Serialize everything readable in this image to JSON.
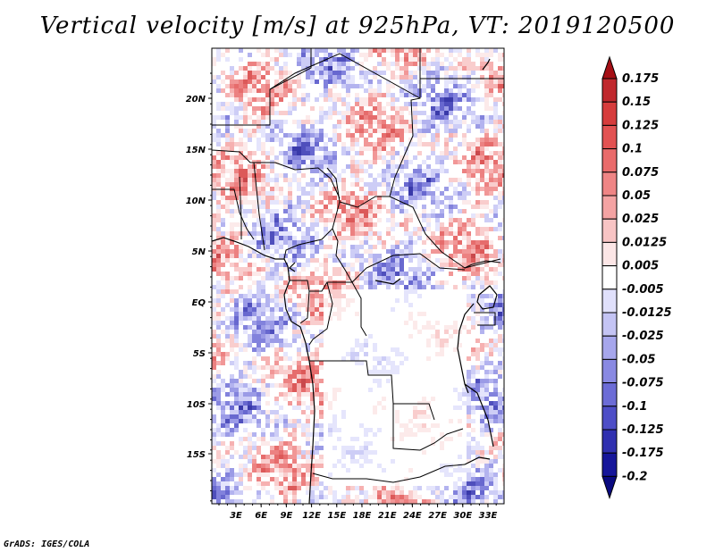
{
  "title": "Vertical velocity [m/s] at 925hPa, VT: 2019120500",
  "credit": "GrADS: IGES/COLA",
  "lat_labels": [
    "20N",
    "15N",
    "10N",
    "5N",
    "EQ",
    "5S",
    "10S",
    "15S"
  ],
  "lon_labels": [
    "3E",
    "6E",
    "9E",
    "12E",
    "15E",
    "18E",
    "21E",
    "24E",
    "27E",
    "30E",
    "33E"
  ],
  "colorbar": {
    "labels": [
      "0.175",
      "0.15",
      "0.125",
      "0.1",
      "0.075",
      "0.05",
      "0.025",
      "0.0125",
      "0.005",
      "-0.005",
      "-0.0125",
      "-0.025",
      "-0.05",
      "-0.075",
      "-0.1",
      "-0.125",
      "-0.175",
      "-0.2"
    ],
    "colors": [
      "#a50f15",
      "#c0282d",
      "#d63c3c",
      "#e25252",
      "#e96b6b",
      "#ef8585",
      "#f4a3a3",
      "#f8c4c4",
      "#fce6e6",
      "#ffffff",
      "#e0e0fb",
      "#c4c4f4",
      "#a6a6ec",
      "#8989e2",
      "#6c6cd6",
      "#4e4ec7",
      "#3030b0",
      "#16169a",
      "#0a0a80"
    ]
  }
}
